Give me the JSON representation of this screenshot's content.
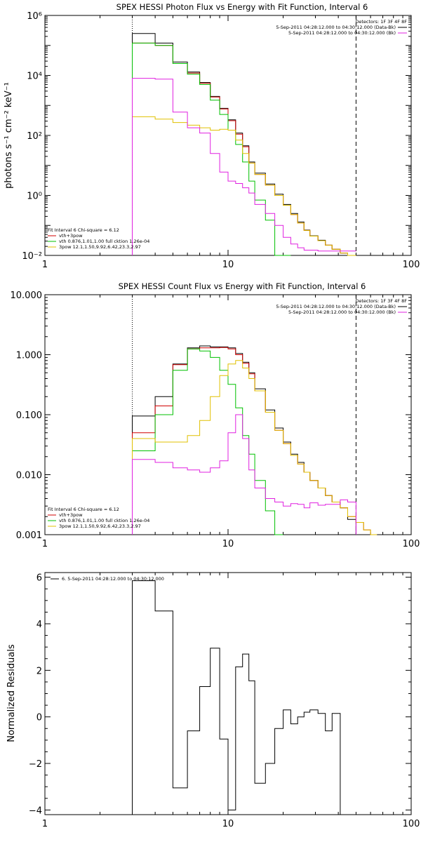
{
  "chart_data": [
    {
      "type": "line",
      "title": "SPEX HESSI Photon Flux vs Energy with Fit Function, Interval 6",
      "ylabel": "photons s⁻¹ cm⁻² keV⁻¹",
      "xlabel": "",
      "xscale": "log",
      "yscale": "log",
      "xlim": [
        1,
        100
      ],
      "ylim": [
        0.01,
        1000000
      ],
      "xticks": [
        {
          "v": 1,
          "l": "1"
        },
        {
          "v": 10,
          "l": "10"
        },
        {
          "v": 100,
          "l": "100"
        }
      ],
      "yticks": [
        {
          "v": 0.01,
          "l": "10⁻²"
        },
        {
          "v": 1,
          "l": "10⁰"
        },
        {
          "v": 100,
          "l": "10²"
        },
        {
          "v": 10000,
          "l": "10⁴"
        },
        {
          "v": 1000000,
          "l": "10⁶"
        }
      ],
      "legend_top": {
        "header": "Detectors: 1F 3F 4F 8F",
        "lines": [
          {
            "text": "5-Sep-2011 04:28:12.000 to 04:30:12.000 (Data-Bk)",
            "color": "#000000"
          },
          {
            "text": "5-Sep-2011 04:28:12.000 to 04:30:12.000 (Bk)",
            "color": "#e020e0"
          }
        ]
      },
      "legend_bottom": {
        "header": "Fit Interval  6    Chi-square = 6.12",
        "lines": [
          {
            "text": "vth+3pow",
            "color": "#d00000"
          },
          {
            "text": "vth 0.876,1.01,1.00  full cktion 1.26e-04",
            "color": "#00c000"
          },
          {
            "text": "3pow 12.1,1.50,9.92,6.42,23.3,2.97",
            "color": "#e0c000"
          }
        ]
      },
      "vlines": [
        {
          "x": 3,
          "style": "dotted"
        },
        {
          "x": 50,
          "style": "dashed"
        }
      ],
      "edges": [
        3,
        4,
        5,
        6,
        7,
        8,
        9,
        10,
        11,
        12,
        13,
        14,
        16,
        18,
        20,
        22,
        24,
        26,
        28,
        31,
        34,
        37,
        41,
        45,
        50
      ],
      "series": [
        {
          "name": "Data-Bk",
          "color": "#000000",
          "values": [
            250000,
            120000,
            28000,
            13000,
            5800,
            2000,
            800,
            330,
            120,
            45,
            13,
            5.5,
            2.4,
            1.1,
            0.5,
            0.25,
            0.13,
            0.07,
            0.045,
            0.032,
            0.022,
            0.016,
            0.012,
            0.009
          ]
        },
        {
          "name": "vth+3pow",
          "color": "#d00000",
          "values": [
            120000,
            100000,
            25000,
            12000,
            5500,
            1900,
            760,
            310,
            110,
            42,
            12,
            5,
            2.2,
            1.0,
            0.47,
            0.23,
            0.12,
            0.068,
            0.044,
            0.031,
            0.022,
            0.016,
            0.012,
            0.009
          ]
        },
        {
          "name": "vth",
          "color": "#00c000",
          "values": [
            120000,
            100000,
            25000,
            11000,
            5000,
            1500,
            500,
            150,
            50,
            13,
            3,
            0.7,
            0.15,
            0.01,
            0.005
          ]
        },
        {
          "name": "3pow",
          "color": "#e0c000",
          "values": [
            420,
            350,
            270,
            220,
            180,
            150,
            160,
            150,
            70,
            25,
            12,
            5,
            2.2,
            1.0,
            0.47,
            0.23,
            0.12,
            0.068,
            0.044,
            0.031,
            0.022,
            0.016,
            0.012,
            0.009
          ]
        },
        {
          "name": "Bk",
          "color": "#e020e0",
          "values": [
            8000,
            7500,
            600,
            180,
            120,
            25,
            6,
            3,
            2.5,
            1.8,
            1.2,
            0.5,
            0.25,
            0.1,
            0.04,
            0.024,
            0.018,
            0.015,
            0.015,
            0.014,
            0.014,
            0.014,
            0.014,
            0.014
          ]
        }
      ]
    },
    {
      "type": "line",
      "title": "SPEX HESSI Count Flux vs Energy with Fit Function, Interval 6",
      "ylabel": "",
      "xlabel": "",
      "xscale": "log",
      "yscale": "log",
      "xlim": [
        1,
        100
      ],
      "ylim": [
        0.001,
        10
      ],
      "xticks": [
        {
          "v": 1,
          "l": "1"
        },
        {
          "v": 10,
          "l": "10"
        },
        {
          "v": 100,
          "l": "100"
        }
      ],
      "yticks": [
        {
          "v": 0.001,
          "l": "0.001"
        },
        {
          "v": 0.01,
          "l": "0.010"
        },
        {
          "v": 0.1,
          "l": "0.100"
        },
        {
          "v": 1,
          "l": "1.000"
        },
        {
          "v": 10,
          "l": "10.000"
        }
      ],
      "legend_top": {
        "header": "Detectors: 1F 3F 4F 8F",
        "lines": [
          {
            "text": "5-Sep-2011 04:28:12.000 to 04:30:12.000 (Data-Bk)",
            "color": "#000000"
          },
          {
            "text": "5-Sep-2011 04:28:12.000 to 04:30:12.000 (Bk)",
            "color": "#e020e0"
          }
        ]
      },
      "legend_bottom": {
        "header": "Fit Interval  6    Chi-square = 6.12",
        "lines": [
          {
            "text": "vth+3pow",
            "color": "#d00000"
          },
          {
            "text": "vth 0.876,1.01,1.00  full cktion 1.26e-04",
            "color": "#00c000"
          },
          {
            "text": "3pow 12.1,1.50,9.92,6.42,23.3,2.97",
            "color": "#e0c000"
          }
        ]
      },
      "vlines": [
        {
          "x": 3,
          "style": "dotted"
        },
        {
          "x": 50,
          "style": "dashed"
        }
      ],
      "edges": [
        3,
        4,
        5,
        6,
        7,
        8,
        9,
        10,
        11,
        12,
        13,
        14,
        16,
        18,
        20,
        22,
        24,
        26,
        28,
        31,
        34,
        37,
        41,
        45,
        50,
        55,
        60,
        65
      ],
      "series": [
        {
          "name": "Data-Bk",
          "color": "#000000",
          "values": [
            0.095,
            0.2,
            0.7,
            1.3,
            1.4,
            1.35,
            1.35,
            1.3,
            1.05,
            0.75,
            0.5,
            0.27,
            0.12,
            0.06,
            0.035,
            0.022,
            0.016,
            0.011,
            0.008,
            0.006,
            0.0045,
            0.0035,
            0.0028,
            0.0018,
            null,
            null,
            null
          ]
        },
        {
          "name": "vth+3pow",
          "color": "#d00000",
          "values": [
            0.05,
            0.14,
            0.68,
            1.25,
            1.3,
            1.3,
            1.32,
            1.25,
            1.0,
            0.72,
            0.48,
            0.25,
            0.11,
            0.055,
            0.033,
            0.021,
            0.015,
            0.011,
            0.008,
            0.006,
            0.0045,
            0.0035,
            0.0028,
            0.002,
            0.0016,
            0.0012,
            0.0009
          ]
        },
        {
          "name": "vth",
          "color": "#00c000",
          "values": [
            0.025,
            0.1,
            0.55,
            1.25,
            1.15,
            0.9,
            0.55,
            0.32,
            0.13,
            0.045,
            0.022,
            0.008,
            0.0025,
            0.0005,
            null,
            null,
            null,
            null,
            null,
            null,
            null,
            null,
            null,
            null,
            null,
            null,
            null
          ]
        },
        {
          "name": "3pow",
          "color": "#e0c000",
          "values": [
            0.04,
            0.035,
            0.035,
            0.045,
            0.08,
            0.2,
            0.45,
            0.7,
            0.8,
            0.6,
            0.4,
            0.25,
            0.11,
            0.055,
            0.033,
            0.021,
            0.015,
            0.011,
            0.008,
            0.006,
            0.0045,
            0.0035,
            0.0028,
            0.002,
            0.0016,
            0.0012,
            0.0009
          ]
        },
        {
          "name": "Bk",
          "color": "#e020e0",
          "values": [
            0.018,
            0.016,
            0.013,
            0.012,
            0.011,
            0.013,
            0.017,
            0.05,
            0.1,
            0.04,
            0.012,
            0.006,
            0.004,
            0.0035,
            0.003,
            0.0033,
            0.0032,
            0.0028,
            0.0034,
            0.0031,
            0.0032,
            0.0032,
            0.0038,
            0.0035,
            null,
            null,
            null
          ]
        }
      ]
    },
    {
      "type": "line",
      "title": "",
      "ylabel": "Normalized Residuals",
      "xlabel": "",
      "xscale": "log",
      "yscale": "linear",
      "xlim": [
        1,
        100
      ],
      "ylim": [
        -4.2,
        6.2
      ],
      "xticks": [
        {
          "v": 1,
          "l": "1"
        },
        {
          "v": 10,
          "l": "10"
        },
        {
          "v": 100,
          "l": "100"
        }
      ],
      "yticks": [
        {
          "v": -4,
          "l": "−4"
        },
        {
          "v": -2,
          "l": "−2"
        },
        {
          "v": 0,
          "l": "0"
        },
        {
          "v": 2,
          "l": "2"
        },
        {
          "v": 4,
          "l": "4"
        },
        {
          "v": 6,
          "l": "6"
        }
      ],
      "legend_top": {
        "header": "",
        "lines": [
          {
            "text": "6.  5-Sep-2011 04:28:12.000 to 04:30:12.000",
            "color": "#000000"
          }
        ]
      },
      "vlines": [],
      "edges": [
        3,
        4,
        5,
        6,
        7,
        8,
        9,
        10,
        11,
        12,
        13,
        14,
        16,
        18,
        20,
        22,
        24,
        26,
        28,
        31,
        34,
        37,
        41,
        45,
        50
      ],
      "series": [
        {
          "name": "6.  5-Sep-2011 04:28:12.000 to 04:30:12.000",
          "color": "#000000",
          "values": [
            5.85,
            4.55,
            -3.05,
            -0.6,
            1.3,
            2.95,
            -0.95,
            -4.0,
            2.15,
            2.7,
            1.55,
            -2.85,
            -2.0,
            -0.5,
            0.3,
            -0.3,
            0.0,
            0.2,
            0.3,
            0.15,
            -0.6,
            0.15,
            null,
            null
          ]
        }
      ]
    }
  ]
}
